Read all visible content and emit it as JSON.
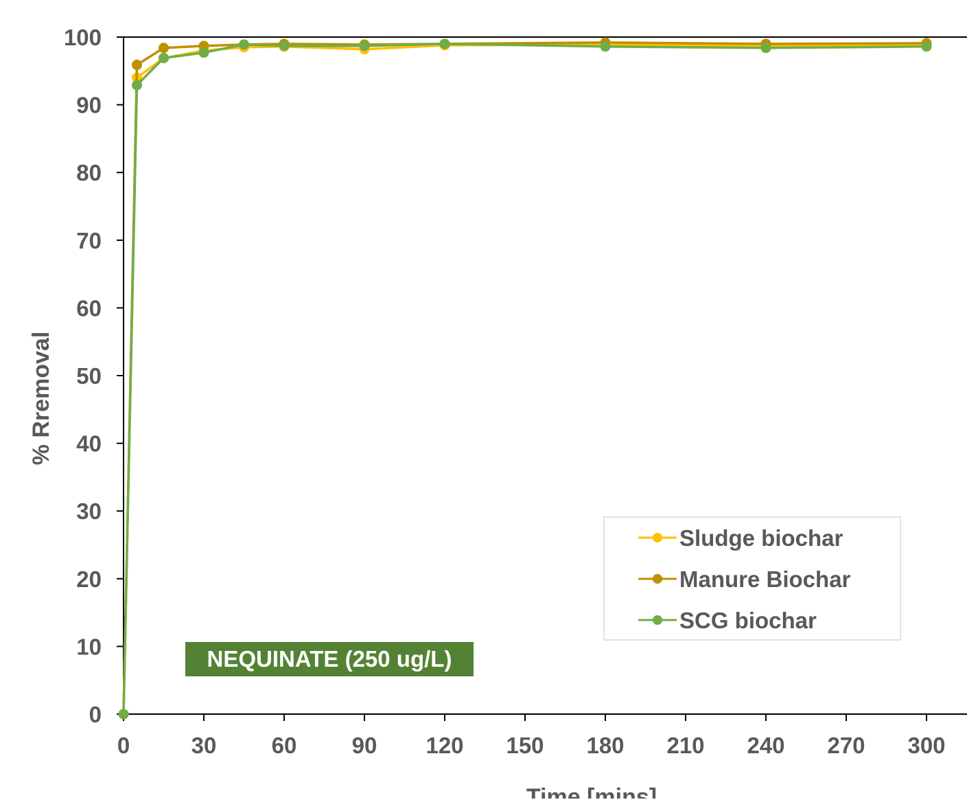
{
  "chart_data": {
    "type": "line",
    "title": "",
    "xlabel": "Time [mins]",
    "ylabel": "% Rremoval",
    "xlim": [
      0,
      310
    ],
    "ylim": [
      0,
      100
    ],
    "x_ticks": [
      0,
      30,
      60,
      90,
      120,
      150,
      180,
      210,
      240,
      270,
      300
    ],
    "y_ticks": [
      0,
      10,
      20,
      30,
      40,
      50,
      60,
      70,
      80,
      90,
      100
    ],
    "x_tick_labels": [
      "0",
      "30",
      "60",
      "90",
      "120",
      "150",
      "180",
      "210",
      "240",
      "270",
      "300"
    ],
    "y_tick_labels": [
      "0",
      "10",
      "20",
      "30",
      "40",
      "50",
      "60",
      "70",
      "80",
      "90",
      "100"
    ],
    "grid": false,
    "legend_position": "bottom-right",
    "annotation": "NEQUINATE (250 ug/L)",
    "x": [
      0,
      5,
      15,
      30,
      45,
      60,
      90,
      120,
      180,
      240,
      300
    ],
    "series": [
      {
        "name": "Sludge biochar",
        "color": "#FFC000",
        "values": [
          0,
          94.0,
          96.9,
          98.0,
          98.5,
          98.6,
          98.2,
          98.8,
          98.9,
          98.7,
          98.9
        ]
      },
      {
        "name": "Manure Biochar",
        "color": "#BF9000",
        "values": [
          0,
          95.9,
          98.4,
          98.7,
          98.9,
          99.0,
          98.9,
          99.0,
          99.2,
          99.0,
          99.1
        ]
      },
      {
        "name": "SCG biochar",
        "color": "#70AD47",
        "values": [
          0,
          92.9,
          96.9,
          97.7,
          98.9,
          98.7,
          98.7,
          99.0,
          98.6,
          98.4,
          98.6
        ]
      }
    ],
    "colors": {
      "axis": "#000000",
      "tick_text": "#595959",
      "annotation_bg": "#548235",
      "annotation_text": "#ffffff",
      "legend_border": "#D9D9D9"
    }
  }
}
